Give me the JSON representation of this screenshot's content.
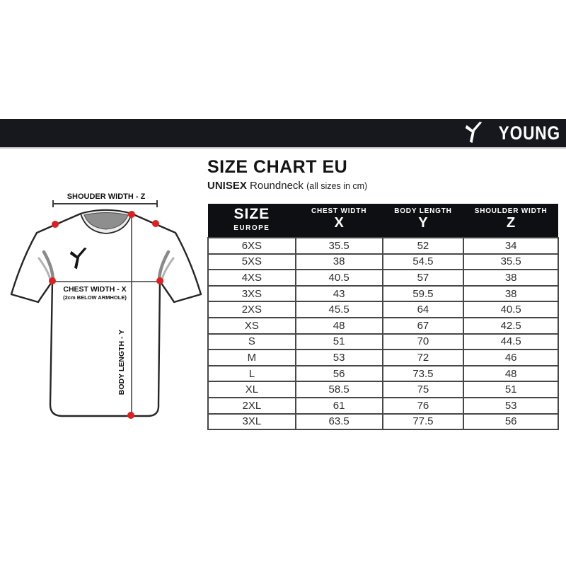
{
  "brand": {
    "name": "YOUNG"
  },
  "title": {
    "main": "SIZE CHART EU",
    "sub_bold": "UNISEX",
    "sub_style": "Roundneck",
    "sub_note": "(all sizes in cm)"
  },
  "diagram": {
    "shoulder_label": "SHOUDER WIDTH - Z",
    "chest_label": "CHEST WIDTH - X",
    "chest_note": "(2cm BELOW ARMHOLE)",
    "body_length_label": "BODY LENGTH - Y",
    "dot_color": "#e02020"
  },
  "table": {
    "size_header": {
      "top": "SIZE",
      "bottom": "EUROPE"
    },
    "columns": [
      {
        "label": "CHEST WIDTH",
        "letter": "X"
      },
      {
        "label": "BODY LENGTH",
        "letter": "Y"
      },
      {
        "label": "SHOULDER WIDTH",
        "letter": "Z"
      }
    ],
    "rows": [
      {
        "size": "6XS",
        "chest": "35.5",
        "body": "52",
        "shoulder": "34"
      },
      {
        "size": "5XS",
        "chest": "38",
        "body": "54.5",
        "shoulder": "35.5"
      },
      {
        "size": "4XS",
        "chest": "40.5",
        "body": "57",
        "shoulder": "38"
      },
      {
        "size": "3XS",
        "chest": "43",
        "body": "59.5",
        "shoulder": "38"
      },
      {
        "size": "2XS",
        "chest": "45.5",
        "body": "64",
        "shoulder": "40.5"
      },
      {
        "size": "XS",
        "chest": "48",
        "body": "67",
        "shoulder": "42.5"
      },
      {
        "size": "S",
        "chest": "51",
        "body": "70",
        "shoulder": "44.5"
      },
      {
        "size": "M",
        "chest": "53",
        "body": "72",
        "shoulder": "46"
      },
      {
        "size": "L",
        "chest": "56",
        "body": "73.5",
        "shoulder": "48"
      },
      {
        "size": "XL",
        "chest": "58.5",
        "body": "75",
        "shoulder": "51"
      },
      {
        "size": "2XL",
        "chest": "61",
        "body": "76",
        "shoulder": "53"
      },
      {
        "size": "3XL",
        "chest": "63.5",
        "body": "77.5",
        "shoulder": "56"
      }
    ]
  },
  "colors": {
    "bar_bg": "#16181e",
    "table_header_bg": "#0e0f12",
    "table_border": "#474747",
    "dot": "#e02020"
  },
  "chart_data": {
    "type": "table",
    "title": "SIZE CHART EU",
    "subtitle": "UNISEX Roundneck (all sizes in cm)",
    "columns": [
      "SIZE EUROPE",
      "CHEST WIDTH X (cm)",
      "BODY LENGTH Y (cm)",
      "SHOULDER WIDTH Z (cm)"
    ],
    "rows": [
      [
        "6XS",
        35.5,
        52,
        34
      ],
      [
        "5XS",
        38,
        54.5,
        35.5
      ],
      [
        "4XS",
        40.5,
        57,
        38
      ],
      [
        "3XS",
        43,
        59.5,
        38
      ],
      [
        "2XS",
        45.5,
        64,
        40.5
      ],
      [
        "XS",
        48,
        67,
        42.5
      ],
      [
        "S",
        51,
        70,
        44.5
      ],
      [
        "M",
        53,
        72,
        46
      ],
      [
        "L",
        56,
        73.5,
        48
      ],
      [
        "XL",
        58.5,
        75,
        51
      ],
      [
        "2XL",
        61,
        76,
        53
      ],
      [
        "3XL",
        63.5,
        77.5,
        56
      ]
    ]
  }
}
